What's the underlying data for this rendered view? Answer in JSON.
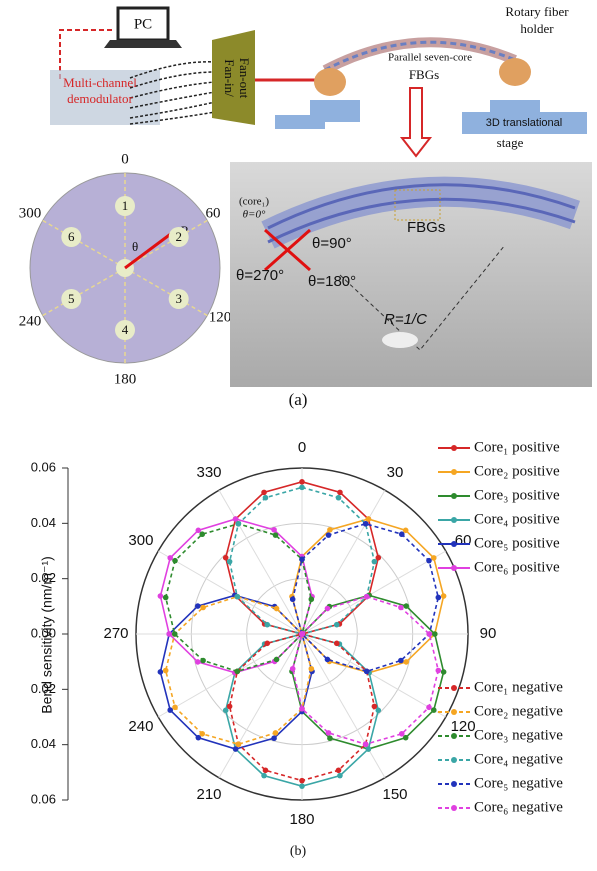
{
  "figure_a": {
    "pc": "PC",
    "demodulator": [
      "Multi-channel",
      "demodulator"
    ],
    "fan": [
      "Fan-in/",
      "Fan-out"
    ],
    "holder": [
      "Rotary fiber",
      "holder"
    ],
    "fiber_title": [
      "Parallel seven-core",
      "FBGs"
    ],
    "stage": [
      "3D translational",
      "stage"
    ],
    "dial_angles": [
      "0",
      "60",
      "120",
      "180",
      "240",
      "300"
    ],
    "cores": [
      "1",
      "2",
      "3",
      "4",
      "5",
      "6"
    ],
    "r": "R",
    "theta": "θ",
    "core_label": [
      "(core₁)",
      "θ=0°"
    ],
    "angle_labels": [
      "θ=90°",
      "θ=270°",
      "θ=180°"
    ],
    "fbgs": "FBGs",
    "radius": "R=1/C",
    "caption": "(a)"
  },
  "chart_data": {
    "type": "polar",
    "caption": "(b)",
    "ylabel": "Bend sensitivity (nm/m⁻¹)",
    "rlim": [
      0,
      0.06
    ],
    "rticks": [
      {
        "value": 0,
        "label": "0.00"
      },
      0.02,
      0.04,
      0.06
    ],
    "thetaticks": [
      "0",
      "30",
      "60",
      "90",
      "120",
      "150",
      "180",
      "210",
      "240",
      "270",
      "300",
      "330"
    ],
    "theta": [
      0,
      15,
      30,
      45,
      60,
      75,
      90,
      105,
      120,
      135,
      150,
      165,
      180,
      195,
      210,
      225,
      240,
      255,
      270,
      285,
      300,
      315,
      330,
      345
    ],
    "grid": true,
    "series": [
      {
        "name": "Core₁ positive",
        "color": "#d62728",
        "linestyle": "solid",
        "values": [
          0.055,
          0.053,
          0.048,
          0.039,
          0.028,
          0.014,
          0,
          0,
          0,
          0,
          0,
          0,
          0,
          0,
          0,
          0,
          0,
          0,
          0,
          0.014,
          0.028,
          0.039,
          0.048,
          0.053
        ]
      },
      {
        "name": "Core₂ positive",
        "color": "#f5a623",
        "linestyle": "solid",
        "values": [
          0.028,
          0.039,
          0.048,
          0.053,
          0.055,
          0.053,
          0.048,
          0.039,
          0.028,
          0.014,
          0,
          0,
          0,
          0,
          0,
          0,
          0,
          0,
          0,
          0,
          0,
          0,
          0,
          0.014
        ]
      },
      {
        "name": "Core₃ positive",
        "color": "#2e8b2e",
        "linestyle": "solid",
        "values": [
          0,
          0,
          0,
          0.014,
          0.028,
          0.039,
          0.048,
          0.053,
          0.055,
          0.053,
          0.048,
          0.039,
          0.028,
          0.014,
          0,
          0,
          0,
          0,
          0,
          0,
          0,
          0,
          0,
          0
        ]
      },
      {
        "name": "Core₄ positive",
        "color": "#3aa6a6",
        "linestyle": "solid",
        "values": [
          0,
          0,
          0,
          0,
          0,
          0,
          0,
          0.014,
          0.028,
          0.039,
          0.048,
          0.053,
          0.055,
          0.053,
          0.048,
          0.039,
          0.028,
          0.014,
          0,
          0,
          0,
          0,
          0,
          0
        ]
      },
      {
        "name": "Core₅ positive",
        "color": "#2233bb",
        "linestyle": "solid",
        "values": [
          0,
          0,
          0,
          0,
          0,
          0,
          0,
          0,
          0,
          0,
          0,
          0.014,
          0.028,
          0.039,
          0.048,
          0.053,
          0.055,
          0.053,
          0.048,
          0.039,
          0.028,
          0.014,
          0,
          0
        ]
      },
      {
        "name": "Core₆ positive",
        "color": "#e040e0",
        "linestyle": "solid",
        "values": [
          0.028,
          0.014,
          0,
          0,
          0,
          0,
          0,
          0,
          0,
          0,
          0,
          0,
          0,
          0,
          0,
          0.014,
          0.028,
          0.039,
          0.048,
          0.053,
          0.055,
          0.053,
          0.048,
          0.039
        ]
      },
      {
        "name": "Core₁ negative",
        "color": "#d62728",
        "linestyle": "dashed",
        "values": [
          0,
          0,
          0,
          0,
          0,
          0,
          0,
          0.013,
          0.027,
          0.037,
          0.046,
          0.051,
          0.053,
          0.051,
          0.046,
          0.037,
          0.027,
          0.013,
          0,
          0,
          0,
          0,
          0,
          0
        ]
      },
      {
        "name": "Core₂ negative",
        "color": "#f5a623",
        "linestyle": "dashed",
        "values": [
          0,
          0,
          0,
          0,
          0,
          0,
          0,
          0,
          0,
          0,
          0,
          0.013,
          0.027,
          0.037,
          0.046,
          0.051,
          0.053,
          0.051,
          0.046,
          0.037,
          0.027,
          0.013,
          0,
          0
        ]
      },
      {
        "name": "Core₃ negative",
        "color": "#2e8b2e",
        "linestyle": "dashed",
        "values": [
          0.027,
          0.013,
          0,
          0,
          0,
          0,
          0,
          0,
          0,
          0,
          0,
          0,
          0,
          0,
          0,
          0.013,
          0.027,
          0.037,
          0.046,
          0.051,
          0.053,
          0.051,
          0.046,
          0.037
        ]
      },
      {
        "name": "Core₄ negative",
        "color": "#3aa6a6",
        "linestyle": "dashed",
        "values": [
          0.053,
          0.051,
          0.046,
          0.037,
          0.027,
          0.013,
          0,
          0,
          0,
          0,
          0,
          0,
          0,
          0,
          0,
          0,
          0,
          0,
          0,
          0.013,
          0.027,
          0.037,
          0.046,
          0.051
        ]
      },
      {
        "name": "Core₅ negative",
        "color": "#2233bb",
        "linestyle": "dashed",
        "values": [
          0.027,
          0.037,
          0.046,
          0.051,
          0.053,
          0.051,
          0.046,
          0.037,
          0.027,
          0.013,
          0,
          0,
          0,
          0,
          0,
          0,
          0,
          0,
          0,
          0,
          0,
          0,
          0,
          0.013
        ]
      },
      {
        "name": "Core₆ negative",
        "color": "#e040e0",
        "linestyle": "dashed",
        "values": [
          0,
          0,
          0,
          0.013,
          0.027,
          0.037,
          0.046,
          0.051,
          0.053,
          0.051,
          0.046,
          0.037,
          0.027,
          0.013,
          0,
          0,
          0,
          0,
          0,
          0,
          0,
          0,
          0,
          0
        ]
      }
    ]
  }
}
